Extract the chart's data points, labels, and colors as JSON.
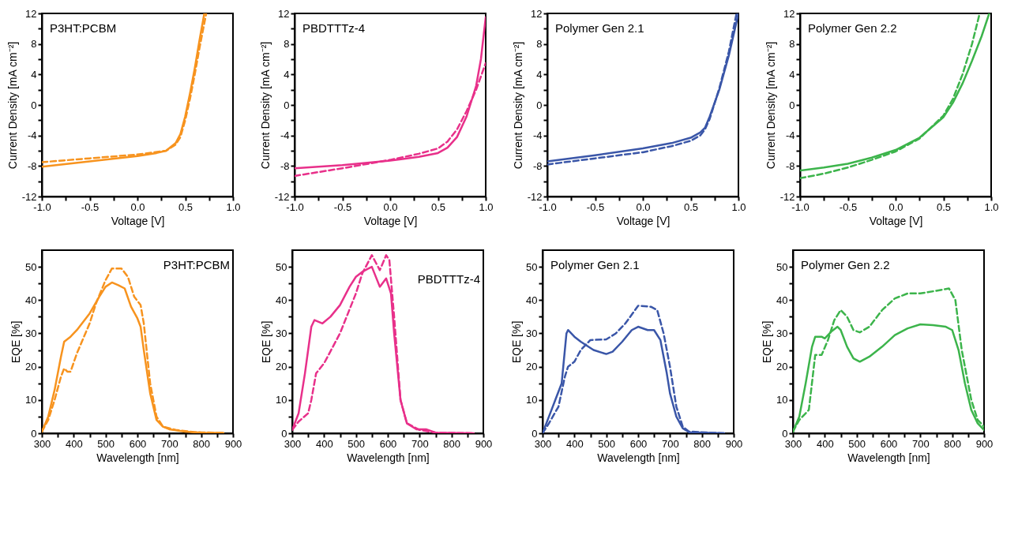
{
  "chart_data": [
    {
      "type": "line",
      "title": "P3HT:PCBM",
      "xlabel": "Voltage [V]",
      "ylabel": "Current Density [mA cm⁻²]",
      "xlim": [
        -1,
        1
      ],
      "ylim": [
        -12,
        12
      ],
      "xticks": [
        {
          "value": -1,
          "label": "-1.0"
        },
        {
          "value": -0.75,
          "label": null
        },
        {
          "value": -0.5,
          "label": "-0.5"
        },
        {
          "value": -0.25,
          "label": null
        },
        {
          "value": 0,
          "label": "0.0"
        },
        {
          "value": 0.25,
          "label": null
        },
        {
          "value": 0.5,
          "label": "0.5"
        },
        {
          "value": 0.75,
          "label": null
        },
        {
          "value": 1,
          "label": "1.0"
        }
      ],
      "yticks": [
        -12,
        {
          "value": -10,
          "label": null
        },
        -8,
        {
          "value": -6,
          "label": null
        },
        -4,
        {
          "value": -2,
          "label": null
        },
        0,
        {
          "value": 2,
          "label": null
        },
        4,
        {
          "value": 6,
          "label": null
        },
        8,
        {
          "value": 10,
          "label": null
        },
        12
      ],
      "series": [
        {
          "color": "#f7931e",
          "line_style": "solid",
          "x": [
            -1,
            -0.5,
            0,
            0.2,
            0.3,
            0.4,
            0.45,
            0.5,
            0.55,
            0.6,
            0.65,
            0.7
          ],
          "values": [
            -8.1,
            -7.4,
            -6.7,
            -6.3,
            -6.0,
            -5.0,
            -3.8,
            -1.5,
            1.5,
            4.8,
            8.5,
            12
          ]
        },
        {
          "color": "#f7931e",
          "line_style": "dashed",
          "x": [
            -1,
            -0.5,
            0,
            0.3,
            0.4,
            0.45,
            0.5,
            0.55,
            0.6,
            0.65,
            0.72
          ],
          "values": [
            -7.5,
            -7.0,
            -6.5,
            -6.0,
            -5.2,
            -4.2,
            -2.0,
            0.8,
            4,
            7.5,
            12
          ]
        }
      ]
    },
    {
      "type": "line",
      "title": "PBDTTTz-4",
      "xlabel": "Voltage [V]",
      "ylabel": "Current Density [mA cm⁻²]",
      "xlim": [
        -1,
        1
      ],
      "ylim": [
        -12,
        12
      ],
      "xticks": [
        {
          "value": -1,
          "label": "-1.0"
        },
        {
          "value": -0.75,
          "label": null
        },
        {
          "value": -0.5,
          "label": "-0.5"
        },
        {
          "value": -0.25,
          "label": null
        },
        {
          "value": 0,
          "label": "0.0"
        },
        {
          "value": 0.25,
          "label": null
        },
        {
          "value": 0.5,
          "label": "0.5"
        },
        {
          "value": 0.75,
          "label": null
        },
        {
          "value": 1,
          "label": "1.0"
        }
      ],
      "yticks": [
        -12,
        {
          "value": -10,
          "label": null
        },
        -8,
        {
          "value": -6,
          "label": null
        },
        -4,
        {
          "value": -2,
          "label": null
        },
        0,
        {
          "value": 2,
          "label": null
        },
        4,
        {
          "value": 6,
          "label": null
        },
        8,
        {
          "value": 10,
          "label": null
        },
        12
      ],
      "series": [
        {
          "color": "#e8308a",
          "line_style": "solid",
          "x": [
            -1,
            -0.5,
            0,
            0.3,
            0.5,
            0.6,
            0.7,
            0.8,
            0.9,
            0.95,
            1.0
          ],
          "values": [
            -8.3,
            -7.9,
            -7.3,
            -6.8,
            -6.3,
            -5.6,
            -4.2,
            -1.5,
            2.5,
            6,
            11.5
          ]
        },
        {
          "color": "#e8308a",
          "line_style": "dashed",
          "x": [
            -1,
            -0.5,
            0,
            0.3,
            0.5,
            0.6,
            0.7,
            0.8,
            0.9,
            1.0
          ],
          "values": [
            -9.3,
            -8.3,
            -7.2,
            -6.4,
            -5.7,
            -4.8,
            -3.2,
            -0.8,
            2.0,
            5.5
          ]
        }
      ]
    },
    {
      "type": "line",
      "title": "Polymer Gen 2.1",
      "xlabel": "Voltage [V]",
      "ylabel": "Current Density [mA cm⁻²]",
      "xlim": [
        -1,
        1
      ],
      "ylim": [
        -12,
        12
      ],
      "xticks": [
        {
          "value": -1,
          "label": "-1.0"
        },
        {
          "value": -0.75,
          "label": null
        },
        {
          "value": -0.5,
          "label": "-0.5"
        },
        {
          "value": -0.25,
          "label": null
        },
        {
          "value": 0,
          "label": "0.0"
        },
        {
          "value": 0.25,
          "label": null
        },
        {
          "value": 0.5,
          "label": "0.5"
        },
        {
          "value": 0.75,
          "label": null
        },
        {
          "value": 1,
          "label": "1.0"
        }
      ],
      "yticks": [
        -12,
        {
          "value": -10,
          "label": null
        },
        -8,
        {
          "value": -6,
          "label": null
        },
        -4,
        {
          "value": -2,
          "label": null
        },
        0,
        {
          "value": 2,
          "label": null
        },
        4,
        {
          "value": 6,
          "label": null
        },
        8,
        {
          "value": 10,
          "label": null
        },
        12
      ],
      "series": [
        {
          "color": "#3a56a8",
          "line_style": "solid",
          "x": [
            -1,
            -0.5,
            0,
            0.3,
            0.5,
            0.6,
            0.65,
            0.7,
            0.8,
            0.9,
            1.0
          ],
          "values": [
            -7.4,
            -6.6,
            -5.7,
            -5.0,
            -4.3,
            -3.6,
            -3.0,
            -1.5,
            2,
            6.5,
            12
          ]
        },
        {
          "color": "#3a56a8",
          "line_style": "dashed",
          "x": [
            -1,
            -0.5,
            0,
            0.3,
            0.5,
            0.6,
            0.65,
            0.7,
            0.8,
            0.9,
            0.98
          ],
          "values": [
            -7.8,
            -7.0,
            -6.2,
            -5.4,
            -4.7,
            -4.0,
            -3.2,
            -1.8,
            2.2,
            7,
            12
          ]
        }
      ]
    },
    {
      "type": "line",
      "title": "Polymer Gen 2.2",
      "xlabel": "Voltage [V]",
      "ylabel": "Current Density [mA cm⁻²]",
      "xlim": [
        -1,
        1
      ],
      "ylim": [
        -12,
        12
      ],
      "xticks": [
        {
          "value": -1,
          "label": "-1.0"
        },
        {
          "value": -0.75,
          "label": null
        },
        {
          "value": -0.5,
          "label": "-0.5"
        },
        {
          "value": -0.25,
          "label": null
        },
        {
          "value": 0,
          "label": "0.0"
        },
        {
          "value": 0.25,
          "label": null
        },
        {
          "value": 0.5,
          "label": "0.5"
        },
        {
          "value": 0.75,
          "label": null
        },
        {
          "value": 1,
          "label": "1.0"
        }
      ],
      "yticks": [
        -12,
        {
          "value": -10,
          "label": null
        },
        -8,
        {
          "value": -6,
          "label": null
        },
        -4,
        {
          "value": -2,
          "label": null
        },
        0,
        {
          "value": 2,
          "label": null
        },
        4,
        {
          "value": 6,
          "label": null
        },
        8,
        {
          "value": 10,
          "label": null
        },
        12
      ],
      "series": [
        {
          "color": "#3cb44b",
          "line_style": "solid",
          "x": [
            -1,
            -0.75,
            -0.5,
            -0.25,
            0,
            0.25,
            0.5,
            0.6,
            0.7,
            0.8,
            0.9,
            0.98
          ],
          "values": [
            -8.6,
            -8.2,
            -7.7,
            -6.9,
            -5.9,
            -4.3,
            -1.6,
            0.3,
            2.8,
            5.8,
            9,
            12
          ]
        },
        {
          "color": "#3cb44b",
          "line_style": "dashed",
          "x": [
            -1,
            -0.75,
            -0.5,
            -0.25,
            0,
            0.25,
            0.5,
            0.6,
            0.7,
            0.8,
            0.88
          ],
          "values": [
            -9.6,
            -9.0,
            -8.2,
            -7.2,
            -6.1,
            -4.4,
            -1.4,
            0.8,
            4,
            8,
            12
          ]
        }
      ]
    },
    {
      "type": "line",
      "title": "P3HT:PCBM",
      "xlabel": "Wavelength [nm]",
      "ylabel": "EQE [%]",
      "xlim": [
        300,
        900
      ],
      "ylim": [
        0,
        55
      ],
      "xticks": [
        300,
        {
          "value": 350,
          "label": null
        },
        400,
        {
          "value": 450,
          "label": null
        },
        500,
        {
          "value": 550,
          "label": null
        },
        600,
        {
          "value": 650,
          "label": null
        },
        700,
        {
          "value": 750,
          "label": null
        },
        800,
        {
          "value": 850,
          "label": null
        },
        900
      ],
      "yticks": [
        0,
        {
          "value": 5,
          "label": null
        },
        10,
        {
          "value": 15,
          "label": null
        },
        20,
        {
          "value": 25,
          "label": null
        },
        30,
        {
          "value": 35,
          "label": null
        },
        40,
        {
          "value": 45,
          "label": null
        },
        50
      ],
      "series": [
        {
          "color": "#f7931e",
          "line_style": "solid",
          "x": [
            300,
            320,
            340,
            360,
            370,
            390,
            410,
            450,
            480,
            500,
            520,
            540,
            560,
            580,
            600,
            610,
            620,
            640,
            660,
            680,
            700,
            750,
            800,
            870
          ],
          "values": [
            0.5,
            5,
            13,
            23,
            27.5,
            29,
            31,
            36,
            41,
            44,
            45.3,
            44.5,
            43.5,
            38,
            34.5,
            32,
            25,
            12,
            4,
            2,
            1.2,
            0.5,
            0.2,
            0.1
          ]
        },
        {
          "color": "#f7931e",
          "line_style": "dashed",
          "x": [
            300,
            320,
            340,
            360,
            370,
            380,
            390,
            410,
            450,
            470,
            500,
            520,
            550,
            570,
            590,
            610,
            620,
            640,
            660,
            680,
            720,
            780,
            870
          ],
          "values": [
            0.5,
            4,
            10,
            17,
            19.5,
            18.5,
            18.5,
            24,
            33,
            39,
            46,
            49.5,
            49.5,
            47,
            41,
            38.5,
            33,
            15,
            5,
            2,
            1,
            0.3,
            0.1
          ]
        }
      ]
    },
    {
      "type": "line",
      "title": "PBDTTTz-4",
      "xlabel": "Wavelength [nm]",
      "ylabel": "EQE [%]",
      "xlim": [
        300,
        900
      ],
      "ylim": [
        0,
        55
      ],
      "xticks": [
        300,
        {
          "value": 350,
          "label": null
        },
        400,
        {
          "value": 450,
          "label": null
        },
        500,
        {
          "value": 550,
          "label": null
        },
        600,
        {
          "value": 650,
          "label": null
        },
        700,
        {
          "value": 750,
          "label": null
        },
        800,
        {
          "value": 850,
          "label": null
        },
        900
      ],
      "yticks": [
        0,
        {
          "value": 5,
          "label": null
        },
        10,
        {
          "value": 15,
          "label": null
        },
        20,
        {
          "value": 25,
          "label": null
        },
        30,
        {
          "value": 35,
          "label": null
        },
        40,
        {
          "value": 45,
          "label": null
        },
        50
      ],
      "series": [
        {
          "color": "#e8308a",
          "line_style": "solid",
          "x": [
            300,
            320,
            340,
            360,
            370,
            395,
            420,
            450,
            480,
            500,
            520,
            540,
            550,
            575,
            595,
            610,
            620,
            640,
            660,
            690,
            720,
            750,
            870
          ],
          "values": [
            1,
            6,
            18,
            32,
            34,
            33,
            35,
            38.5,
            44,
            47,
            48.5,
            49.5,
            50,
            44,
            46.5,
            42,
            30,
            10,
            3,
            1.2,
            1.2,
            0.2,
            0
          ]
        },
        {
          "color": "#e8308a",
          "line_style": "dashed",
          "x": [
            300,
            320,
            350,
            360,
            375,
            400,
            450,
            500,
            520,
            550,
            575,
            595,
            605,
            620,
            640,
            660,
            700,
            750,
            870
          ],
          "values": [
            1,
            3.5,
            6,
            10,
            18,
            21,
            30,
            42,
            48,
            53.5,
            49,
            53.5,
            52,
            35,
            10,
            3,
            1,
            0.2,
            0
          ]
        }
      ]
    },
    {
      "type": "line",
      "title": "Polymer Gen 2.1",
      "xlabel": "Wavelength [nm]",
      "ylabel": "EQE [%]",
      "xlim": [
        300,
        900
      ],
      "ylim": [
        0,
        55
      ],
      "xticks": [
        300,
        {
          "value": 350,
          "label": null
        },
        400,
        {
          "value": 450,
          "label": null
        },
        500,
        {
          "value": 550,
          "label": null
        },
        600,
        {
          "value": 650,
          "label": null
        },
        700,
        {
          "value": 750,
          "label": null
        },
        800,
        {
          "value": 850,
          "label": null
        },
        900
      ],
      "yticks": [
        0,
        {
          "value": 5,
          "label": null
        },
        10,
        {
          "value": 15,
          "label": null
        },
        20,
        {
          "value": 25,
          "label": null
        },
        30,
        {
          "value": 35,
          "label": null
        },
        40,
        {
          "value": 45,
          "label": null
        },
        50
      ],
      "series": [
        {
          "color": "#3a56a8",
          "line_style": "solid",
          "x": [
            300,
            320,
            340,
            360,
            375,
            380,
            400,
            420,
            460,
            500,
            520,
            550,
            580,
            600,
            630,
            650,
            670,
            690,
            700,
            720,
            740,
            760,
            870
          ],
          "values": [
            0,
            5,
            10,
            15,
            30,
            31,
            29,
            27.5,
            25,
            23.8,
            24.5,
            27.5,
            31,
            32,
            31,
            31,
            28,
            18,
            12,
            5,
            1.5,
            0.3,
            0
          ]
        },
        {
          "color": "#3a56a8",
          "line_style": "dashed",
          "x": [
            300,
            320,
            350,
            370,
            380,
            400,
            420,
            450,
            500,
            530,
            560,
            600,
            640,
            660,
            680,
            700,
            720,
            740,
            760,
            870
          ],
          "values": [
            0,
            3,
            8,
            17,
            20,
            21.5,
            25,
            28,
            28.2,
            30,
            33,
            38.3,
            38,
            37,
            30,
            20,
            8,
            2,
            0.5,
            0
          ]
        }
      ]
    },
    {
      "type": "line",
      "title": "Polymer Gen 2.2",
      "xlabel": "Wavelength [nm]",
      "ylabel": "EQE [%]",
      "xlim": [
        300,
        900
      ],
      "ylim": [
        0,
        55
      ],
      "xticks": [
        300,
        {
          "value": 350,
          "label": null
        },
        400,
        {
          "value": 450,
          "label": null
        },
        500,
        {
          "value": 550,
          "label": null
        },
        600,
        {
          "value": 650,
          "label": null
        },
        700,
        {
          "value": 750,
          "label": null
        },
        800,
        {
          "value": 850,
          "label": null
        },
        900
      ],
      "yticks": [
        0,
        {
          "value": 5,
          "label": null
        },
        10,
        {
          "value": 15,
          "label": null
        },
        20,
        {
          "value": 25,
          "label": null
        },
        30,
        {
          "value": 35,
          "label": null
        },
        40,
        {
          "value": 45,
          "label": null
        },
        50
      ],
      "series": [
        {
          "color": "#3cb44b",
          "line_style": "solid",
          "x": [
            300,
            320,
            340,
            360,
            370,
            390,
            400,
            420,
            440,
            450,
            470,
            490,
            510,
            540,
            580,
            620,
            660,
            700,
            740,
            780,
            800,
            820,
            840,
            860,
            880,
            900
          ],
          "values": [
            0.5,
            5,
            15,
            26,
            29,
            29,
            28.5,
            30.5,
            32,
            31,
            26,
            22.5,
            21.5,
            23,
            26,
            29.5,
            31.5,
            32.7,
            32.5,
            32,
            31,
            25,
            15,
            7,
            3,
            1
          ]
        },
        {
          "color": "#3cb44b",
          "line_style": "dashed",
          "x": [
            300,
            320,
            350,
            370,
            390,
            410,
            430,
            450,
            470,
            490,
            510,
            540,
            580,
            620,
            660,
            700,
            750,
            790,
            810,
            830,
            860,
            880,
            900
          ],
          "values": [
            0.5,
            4,
            7,
            23.5,
            23.5,
            28,
            34,
            37,
            35,
            31,
            30.3,
            32,
            37,
            40.5,
            42,
            42,
            42.8,
            43.5,
            40,
            25,
            10,
            4,
            2
          ]
        }
      ]
    }
  ]
}
